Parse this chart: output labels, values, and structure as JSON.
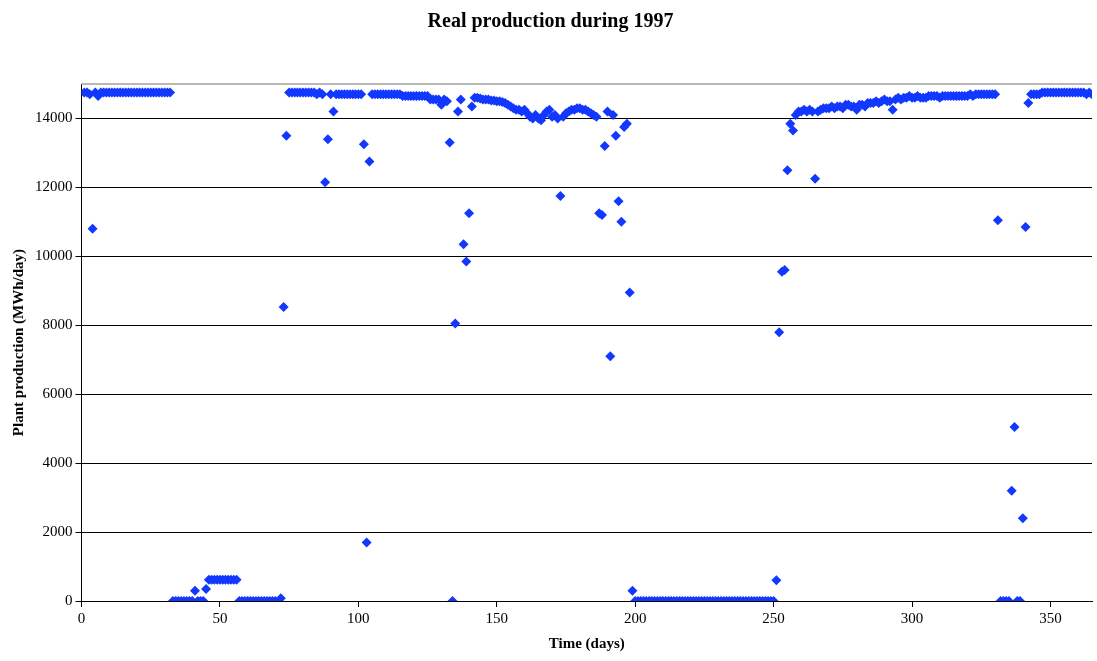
{
  "chart_data": {
    "type": "scatter",
    "title": "Real production during 1997",
    "xlabel": "Time (days)",
    "ylabel": "Plant production (MWh/day)",
    "xlim": [
      0,
      365
    ],
    "xticks": [
      0,
      50,
      100,
      150,
      200,
      250,
      300,
      350
    ],
    "ylim": [
      0,
      15000
    ],
    "yticks": [
      0,
      2000,
      4000,
      6000,
      8000,
      10000,
      12000,
      14000
    ],
    "grid": "y",
    "legend": false,
    "marker": "diamond",
    "x": [
      1,
      2,
      3,
      4,
      5,
      6,
      7,
      8,
      9,
      10,
      11,
      12,
      13,
      14,
      15,
      16,
      17,
      18,
      19,
      20,
      21,
      22,
      23,
      24,
      25,
      26,
      27,
      28,
      29,
      30,
      31,
      32,
      33,
      34,
      35,
      36,
      37,
      38,
      39,
      40,
      41,
      42,
      43,
      44,
      45,
      46,
      47,
      48,
      49,
      50,
      51,
      52,
      53,
      54,
      55,
      56,
      57,
      58,
      59,
      60,
      61,
      62,
      63,
      64,
      65,
      66,
      67,
      68,
      69,
      70,
      71,
      72,
      73,
      74,
      75,
      76,
      77,
      78,
      79,
      80,
      81,
      82,
      83,
      84,
      85,
      86,
      87,
      88,
      89,
      90,
      91,
      92,
      93,
      94,
      95,
      96,
      97,
      98,
      99,
      100,
      101,
      102,
      103,
      104,
      105,
      106,
      107,
      108,
      109,
      110,
      111,
      112,
      113,
      114,
      115,
      116,
      117,
      118,
      119,
      120,
      121,
      122,
      123,
      124,
      125,
      126,
      127,
      128,
      129,
      130,
      131,
      132,
      133,
      134,
      135,
      136,
      137,
      138,
      139,
      140,
      141,
      142,
      143,
      144,
      145,
      146,
      147,
      148,
      149,
      150,
      151,
      152,
      153,
      154,
      155,
      156,
      157,
      158,
      159,
      160,
      161,
      162,
      163,
      164,
      165,
      166,
      167,
      168,
      169,
      170,
      171,
      172,
      173,
      174,
      175,
      176,
      177,
      178,
      179,
      180,
      181,
      182,
      183,
      184,
      185,
      186,
      187,
      188,
      189,
      190,
      191,
      192,
      193,
      194,
      195,
      196,
      197,
      198,
      199,
      200,
      201,
      202,
      203,
      204,
      205,
      206,
      207,
      208,
      209,
      210,
      211,
      212,
      213,
      214,
      215,
      216,
      217,
      218,
      219,
      220,
      221,
      222,
      223,
      224,
      225,
      226,
      227,
      228,
      229,
      230,
      231,
      232,
      233,
      234,
      235,
      236,
      237,
      238,
      239,
      240,
      241,
      242,
      243,
      244,
      245,
      246,
      247,
      248,
      249,
      250,
      251,
      252,
      253,
      254,
      255,
      256,
      257,
      258,
      259,
      260,
      261,
      262,
      263,
      264,
      265,
      266,
      267,
      268,
      269,
      270,
      271,
      272,
      273,
      274,
      275,
      276,
      277,
      278,
      279,
      280,
      281,
      282,
      283,
      284,
      285,
      286,
      287,
      288,
      289,
      290,
      291,
      292,
      293,
      294,
      295,
      296,
      297,
      298,
      299,
      300,
      301,
      302,
      303,
      304,
      305,
      306,
      307,
      308,
      309,
      310,
      311,
      312,
      313,
      314,
      315,
      316,
      317,
      318,
      319,
      320,
      321,
      322,
      323,
      324,
      325,
      326,
      327,
      328,
      329,
      330,
      331,
      332,
      333,
      334,
      335,
      336,
      337,
      338,
      339,
      340,
      341,
      342,
      343,
      344,
      345,
      346,
      347,
      348,
      349,
      350,
      351,
      352,
      353,
      354,
      355,
      356,
      357,
      358,
      359,
      360,
      361,
      362,
      363,
      364,
      365
    ],
    "series": [
      {
        "color": "#1238ff",
        "values": [
          14750,
          14750,
          14700,
          10800,
          14750,
          14650,
          14750,
          14750,
          14750,
          14750,
          14750,
          14750,
          14750,
          14750,
          14750,
          14750,
          14750,
          14750,
          14750,
          14750,
          14750,
          14750,
          14750,
          14750,
          14750,
          14750,
          14750,
          14750,
          14750,
          14750,
          14750,
          14750,
          0,
          0,
          0,
          0,
          0,
          0,
          0,
          0,
          300,
          0,
          0,
          0,
          350,
          620,
          620,
          620,
          620,
          620,
          620,
          620,
          620,
          620,
          620,
          620,
          0,
          0,
          0,
          0,
          0,
          0,
          0,
          0,
          0,
          0,
          0,
          0,
          0,
          0,
          null,
          80,
          8530,
          13500,
          14750,
          14750,
          14750,
          14750,
          14750,
          14750,
          14750,
          14750,
          14750,
          14750,
          14700,
          14750,
          14700,
          12150,
          13400,
          14700,
          14200,
          14700,
          14700,
          14700,
          14700,
          14700,
          14700,
          14700,
          14700,
          14700,
          14700,
          13250,
          1700,
          12750,
          14700,
          14700,
          14700,
          14700,
          14700,
          14700,
          14700,
          14700,
          14700,
          14700,
          14700,
          14650,
          14650,
          14650,
          14650,
          14650,
          14650,
          14650,
          14650,
          14650,
          14650,
          14550,
          14550,
          14550,
          14550,
          14400,
          14550,
          14500,
          13300,
          0,
          8050,
          14200,
          14550,
          10350,
          9850,
          11250,
          14350,
          14600,
          14600,
          14580,
          14550,
          14550,
          14550,
          14520,
          14520,
          14500,
          14500,
          14480,
          14450,
          14400,
          14350,
          14300,
          14250,
          14250,
          14200,
          14250,
          14150,
          14050,
          14000,
          14100,
          14000,
          13950,
          14100,
          14200,
          14250,
          14050,
          14100,
          14000,
          11750,
          14050,
          14150,
          14200,
          14250,
          14250,
          14300,
          14300,
          14250,
          14250,
          14200,
          14150,
          14100,
          14050,
          11250,
          11200,
          13200,
          14200,
          7100,
          14100,
          13500,
          11600,
          11000,
          13750,
          13850,
          8950,
          300,
          0,
          0,
          0,
          0,
          0,
          0,
          0,
          0,
          0,
          0,
          0,
          0,
          0,
          0,
          0,
          0,
          0,
          0,
          0,
          0,
          0,
          0,
          0,
          0,
          0,
          0,
          0,
          0,
          0,
          0,
          0,
          0,
          0,
          0,
          0,
          0,
          0,
          0,
          0,
          0,
          0,
          0,
          0,
          0,
          0,
          0,
          0,
          0,
          0,
          0,
          0,
          600,
          7800,
          9550,
          9600,
          12500,
          13850,
          13650,
          14100,
          14200,
          14200,
          14250,
          14200,
          14250,
          14200,
          12250,
          14200,
          14250,
          14300,
          14300,
          14300,
          14350,
          14300,
          14350,
          14350,
          14300,
          14400,
          14400,
          14350,
          14350,
          14250,
          14400,
          14400,
          14350,
          14450,
          14450,
          14450,
          14500,
          14450,
          14500,
          14550,
          14500,
          14500,
          14250,
          14550,
          14600,
          14550,
          14600,
          14600,
          14650,
          14600,
          14600,
          14650,
          14600,
          14600,
          14600,
          14650,
          14650,
          14650,
          14650,
          14600,
          14650,
          14650,
          14650,
          14650,
          14650,
          14650,
          14650,
          14650,
          14650,
          14650,
          14700,
          14650,
          14700,
          14700,
          14700,
          14700,
          14700,
          14700,
          14700,
          14700,
          11050,
          0,
          0,
          0,
          0,
          3200,
          5050,
          0,
          0,
          2400,
          10850,
          14450,
          14700,
          14700,
          14700,
          14700,
          14750,
          14750,
          14750,
          14750,
          14750,
          14750,
          14750,
          14750,
          14750,
          14750,
          14750,
          14750,
          14750,
          14750,
          14750,
          14750,
          14700,
          14750,
          14700
        ]
      }
    ]
  }
}
